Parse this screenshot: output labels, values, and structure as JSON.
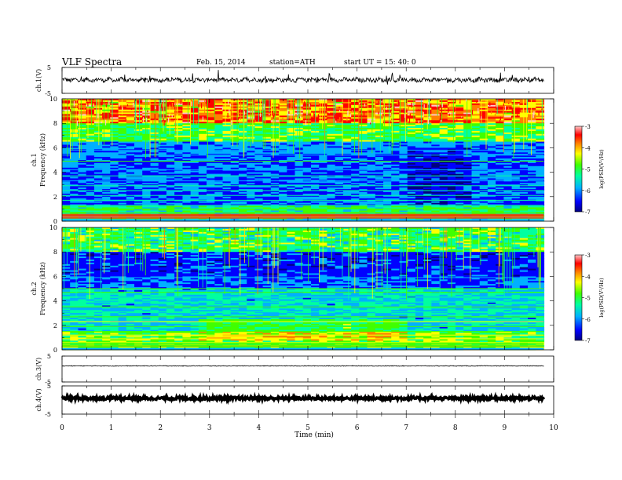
{
  "header": {
    "title": "VLF  Spectra",
    "date": "Feb. 15, 2014",
    "station": "station=ATH",
    "start_ut": "start  UT  =   15: 40: 0"
  },
  "colors": {
    "colormap": [
      "#000080",
      "#0000ff",
      "#00b0ff",
      "#00ffa0",
      "#40ff00",
      "#ffff00",
      "#ff8000",
      "#ff0000",
      "#ffc8c8"
    ]
  },
  "chart_data": [
    {
      "type": "line",
      "name": "ch1-waveform",
      "ylabel": "ch.1(V)",
      "ylim": [
        -5,
        5
      ],
      "y_ticks": [
        "5",
        "-5"
      ],
      "x_range_min": [
        0,
        9.8
      ]
    },
    {
      "type": "heatmap",
      "name": "ch1-spectrogram",
      "ylabel_top": "ch.1",
      "ylabel": "Frequency  (kHz)",
      "ylim_khz": [
        0,
        10
      ],
      "y_ticks": [
        "0",
        "2",
        "4",
        "6",
        "8",
        "10"
      ],
      "x_range_min": [
        0,
        9.8
      ],
      "colorbar": {
        "label": "log(PSD(V²/Hz)",
        "range": [
          -7,
          -3
        ],
        "ticks": [
          "-3",
          "-4",
          "-5",
          "-6",
          "-7"
        ]
      }
    },
    {
      "type": "heatmap",
      "name": "ch2-spectrogram",
      "ylabel_top": "ch.2",
      "ylabel": "Frequency  (kHz)",
      "ylim_khz": [
        0,
        10
      ],
      "y_ticks": [
        "0",
        "2",
        "4",
        "6",
        "8",
        "10"
      ],
      "x_range_min": [
        0,
        9.8
      ],
      "colorbar": {
        "label": "log(PSD(V²/Hz)",
        "range": [
          -7,
          -3
        ],
        "ticks": [
          "-3",
          "-4",
          "-5",
          "-6",
          "-7"
        ]
      }
    },
    {
      "type": "line",
      "name": "ch3-waveform",
      "ylabel": "ch.3(V)",
      "ylim": [
        -5,
        5
      ],
      "y_ticks": [
        "5",
        "-5"
      ],
      "x_range_min": [
        0,
        9.8
      ]
    },
    {
      "type": "line",
      "name": "ch4-waveform",
      "ylabel": "ch.4(V)",
      "ylim": [
        -5,
        5
      ],
      "y_ticks": [
        "5",
        "-5"
      ],
      "x_range_min": [
        0,
        9.8
      ]
    }
  ],
  "xaxis": {
    "label": "Time  (min)",
    "range": [
      0,
      10
    ],
    "ticks": [
      "0",
      "1",
      "2",
      "3",
      "4",
      "5",
      "6",
      "7",
      "8",
      "9",
      "10"
    ]
  }
}
